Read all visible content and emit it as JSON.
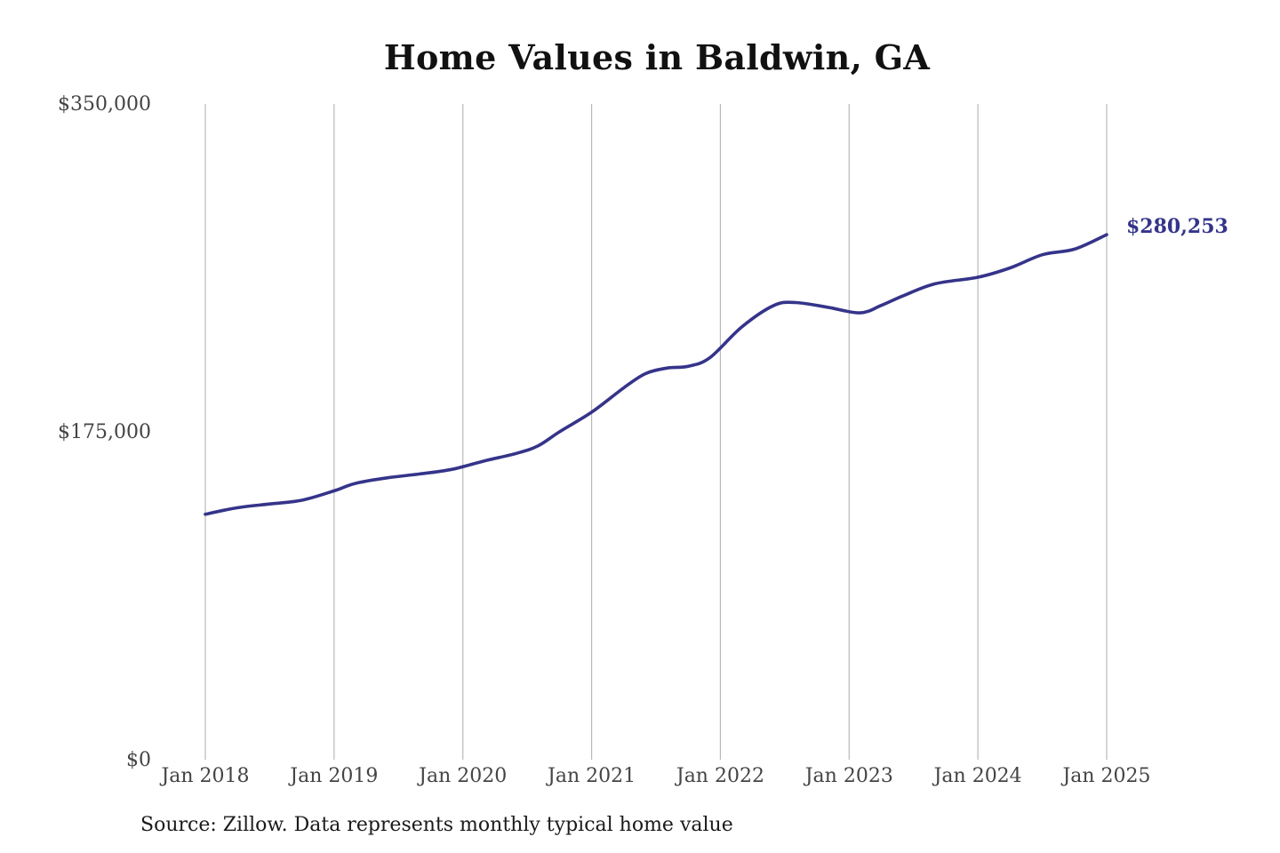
{
  "chart_data": {
    "type": "line",
    "title": "Home Values in Baldwin, GA",
    "ylim": [
      0,
      350000
    ],
    "yticks": [
      {
        "value": 0,
        "label": "$0"
      },
      {
        "value": 175000,
        "label": "$175,000"
      },
      {
        "value": 350000,
        "label": "$350,000"
      }
    ],
    "xlim": [
      "2018-01",
      "2025-01"
    ],
    "xticks": [
      "Jan 2018",
      "Jan 2019",
      "Jan 2020",
      "Jan 2021",
      "Jan 2022",
      "Jan 2023",
      "Jan 2024",
      "Jan 2025"
    ],
    "grid": "vertical",
    "line_color": "#35348a",
    "series": [
      {
        "points": [
          {
            "x": "2018-01",
            "y": 131000
          },
          {
            "x": "2018-04",
            "y": 134500
          },
          {
            "x": "2018-07",
            "y": 136500
          },
          {
            "x": "2018-10",
            "y": 138500
          },
          {
            "x": "2019-01",
            "y": 143500
          },
          {
            "x": "2019-03",
            "y": 147500
          },
          {
            "x": "2019-06",
            "y": 150500
          },
          {
            "x": "2019-09",
            "y": 152500
          },
          {
            "x": "2019-12",
            "y": 155000
          },
          {
            "x": "2020-03",
            "y": 159500
          },
          {
            "x": "2020-06",
            "y": 163500
          },
          {
            "x": "2020-08",
            "y": 167500
          },
          {
            "x": "2020-10",
            "y": 175000
          },
          {
            "x": "2021-01",
            "y": 185500
          },
          {
            "x": "2021-04",
            "y": 198500
          },
          {
            "x": "2021-06",
            "y": 206000
          },
          {
            "x": "2021-08",
            "y": 209000
          },
          {
            "x": "2021-10",
            "y": 210000
          },
          {
            "x": "2021-12",
            "y": 214500
          },
          {
            "x": "2022-03",
            "y": 231000
          },
          {
            "x": "2022-06",
            "y": 242500
          },
          {
            "x": "2022-08",
            "y": 244000
          },
          {
            "x": "2022-11",
            "y": 241500
          },
          {
            "x": "2023-02",
            "y": 238500
          },
          {
            "x": "2023-04",
            "y": 242500
          },
          {
            "x": "2023-06",
            "y": 247500
          },
          {
            "x": "2023-09",
            "y": 254000
          },
          {
            "x": "2024-01",
            "y": 257500
          },
          {
            "x": "2024-04",
            "y": 262500
          },
          {
            "x": "2024-07",
            "y": 269500
          },
          {
            "x": "2024-10",
            "y": 272500
          },
          {
            "x": "2025-01",
            "y": 280253
          }
        ]
      }
    ],
    "end_label": "$280,253",
    "footer": "Source: Zillow. Data represents monthly typical home value"
  }
}
